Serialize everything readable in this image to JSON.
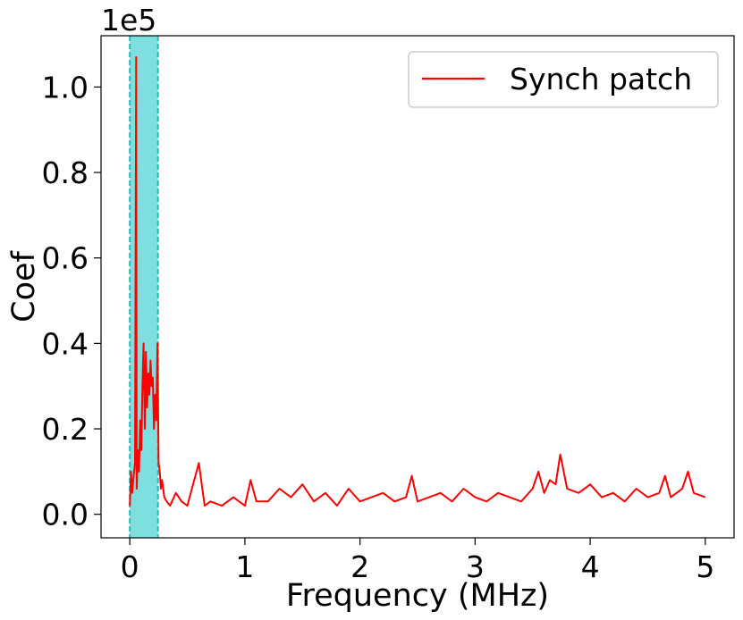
{
  "chart_data": {
    "type": "line",
    "xlabel": "Frequency (MHz)",
    "ylabel": "Coef",
    "y_offset_text": "1e5",
    "y_multiplier": 100000,
    "xlim": [
      -0.25,
      5.25
    ],
    "ylim": [
      -0.055,
      1.12
    ],
    "x_ticks": [
      0,
      1,
      2,
      3,
      4,
      5
    ],
    "x_tick_labels": [
      "0",
      "1",
      "2",
      "3",
      "4",
      "5"
    ],
    "y_ticks": [
      0.0,
      0.2,
      0.4,
      0.6,
      0.8,
      1.0
    ],
    "y_tick_labels": [
      "0.0",
      "0.2",
      "0.4",
      "0.6",
      "0.8",
      "1.0"
    ],
    "grid": false,
    "legend": {
      "placement": "upper-right"
    },
    "shaded_band": {
      "x_range": [
        0,
        0.245
      ],
      "color": "#7fdfdf",
      "edge_color": "#22bcbc"
    },
    "series": [
      {
        "name": "Synch patch",
        "color": "#ff0000",
        "x": [
          0,
          0.01,
          0.02,
          0.03,
          0.045,
          0.055,
          0.06,
          0.07,
          0.08,
          0.09,
          0.1,
          0.11,
          0.12,
          0.13,
          0.14,
          0.15,
          0.16,
          0.17,
          0.18,
          0.19,
          0.2,
          0.21,
          0.22,
          0.23,
          0.24,
          0.25,
          0.26,
          0.27,
          0.28,
          0.3,
          0.32,
          0.35,
          0.4,
          0.45,
          0.5,
          0.6,
          0.65,
          0.7,
          0.8,
          0.9,
          1.0,
          1.05,
          1.1,
          1.2,
          1.3,
          1.4,
          1.5,
          1.6,
          1.7,
          1.8,
          1.9,
          2.0,
          2.1,
          2.2,
          2.3,
          2.4,
          2.45,
          2.5,
          2.6,
          2.7,
          2.8,
          2.9,
          3.0,
          3.1,
          3.2,
          3.3,
          3.4,
          3.5,
          3.55,
          3.6,
          3.65,
          3.7,
          3.74,
          3.8,
          3.9,
          4.0,
          4.1,
          4.2,
          4.3,
          4.4,
          4.5,
          4.6,
          4.65,
          4.7,
          4.8,
          4.85,
          4.9,
          5.0
        ],
        "y": [
          0.02,
          0.1,
          0.05,
          0.08,
          0.12,
          1.07,
          0.06,
          0.15,
          0.1,
          0.22,
          0.15,
          0.3,
          0.4,
          0.2,
          0.38,
          0.25,
          0.33,
          0.28,
          0.36,
          0.3,
          0.32,
          0.2,
          0.28,
          0.22,
          0.4,
          0.12,
          0.1,
          0.06,
          0.08,
          0.04,
          0.03,
          0.02,
          0.05,
          0.03,
          0.02,
          0.12,
          0.02,
          0.03,
          0.02,
          0.04,
          0.02,
          0.08,
          0.03,
          0.03,
          0.06,
          0.04,
          0.07,
          0.03,
          0.05,
          0.02,
          0.06,
          0.03,
          0.04,
          0.05,
          0.03,
          0.04,
          0.09,
          0.03,
          0.04,
          0.05,
          0.03,
          0.06,
          0.04,
          0.03,
          0.05,
          0.04,
          0.03,
          0.06,
          0.1,
          0.05,
          0.08,
          0.07,
          0.14,
          0.06,
          0.05,
          0.07,
          0.04,
          0.05,
          0.03,
          0.06,
          0.04,
          0.05,
          0.09,
          0.04,
          0.06,
          0.1,
          0.05,
          0.04
        ]
      }
    ]
  }
}
